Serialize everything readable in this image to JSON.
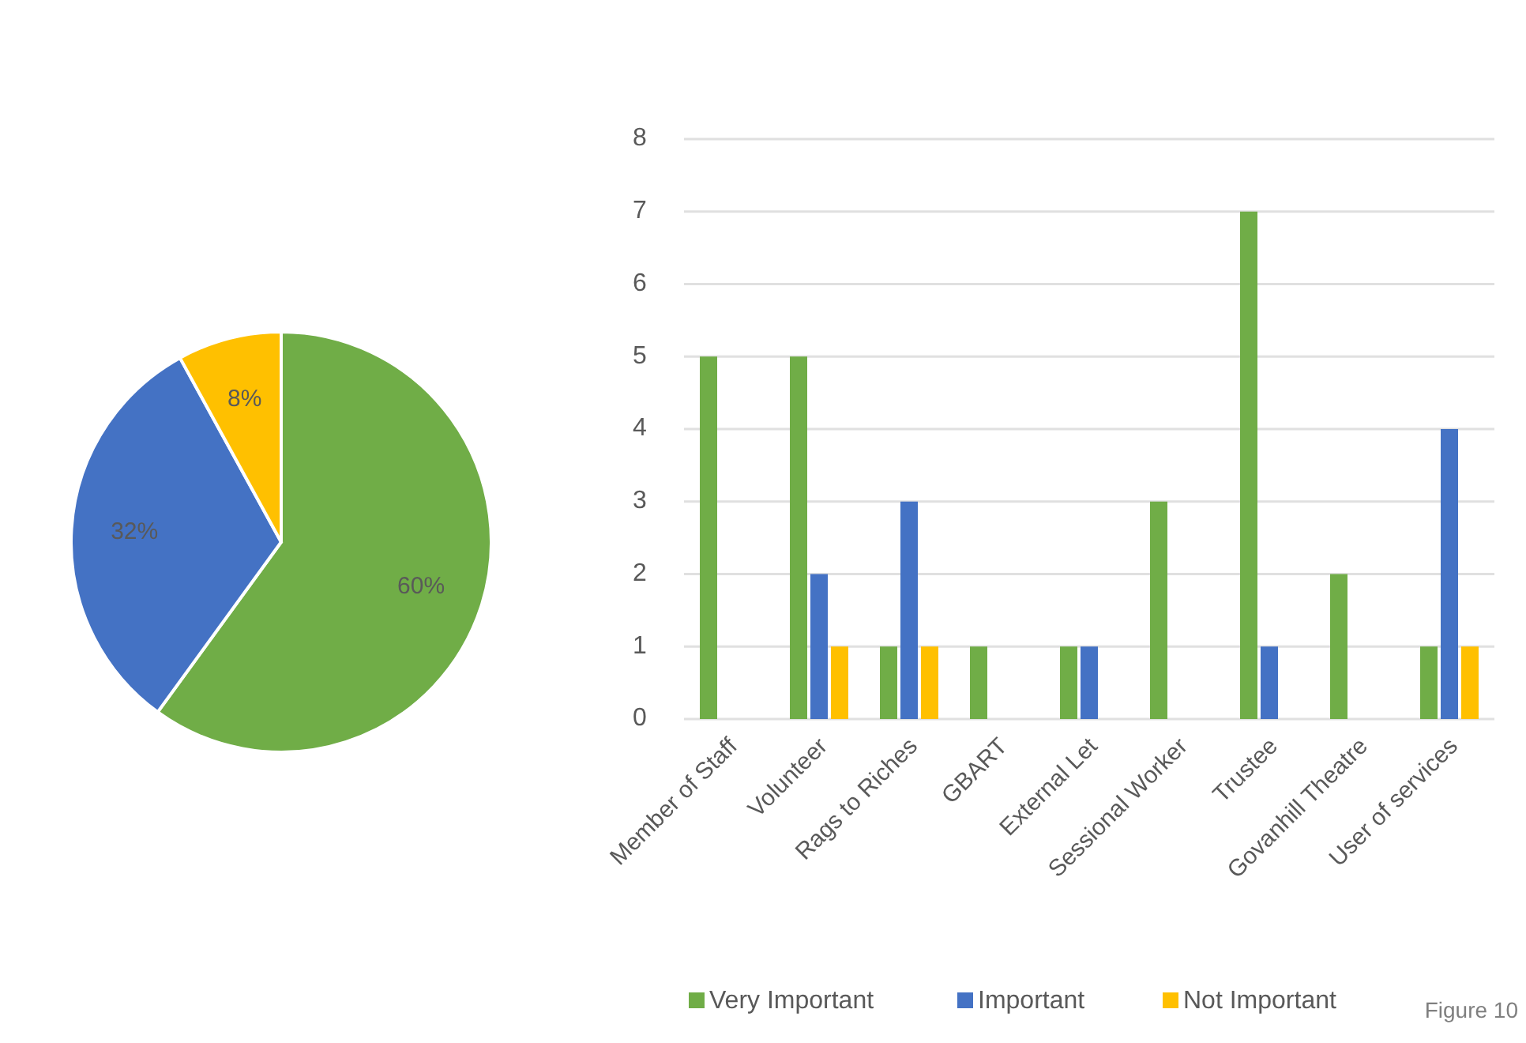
{
  "chart_data": [
    {
      "type": "pie",
      "categories": [
        null,
        null,
        null
      ],
      "values": [
        60,
        32,
        8
      ],
      "colors": [
        "#70ad47",
        "#4472c4",
        "#ffc000"
      ],
      "value_labels": [
        "60%",
        "32%",
        "8%"
      ]
    },
    {
      "type": "bar",
      "categories": [
        "Member of Staff",
        "Volunteer",
        "Rags to Riches",
        "GBART",
        "External Let",
        "Sessional Worker",
        "Trustee",
        "Govanhill Theatre",
        "User of services"
      ],
      "series": [
        {
          "name": "Very Important",
          "color": "#70ad47",
          "values": [
            5,
            5,
            1,
            1,
            1,
            3,
            7,
            2,
            1
          ]
        },
        {
          "name": "Important",
          "color": "#4472c4",
          "values": [
            0,
            2,
            3,
            0,
            1,
            0,
            1,
            0,
            4
          ]
        },
        {
          "name": "Not Important",
          "color": "#ffc000",
          "values": [
            0,
            1,
            1,
            0,
            0,
            0,
            0,
            0,
            1
          ]
        }
      ],
      "ylim": [
        0,
        8
      ],
      "yticks": [
        0,
        1,
        2,
        3,
        4,
        5,
        6,
        7,
        8
      ],
      "grid": "y",
      "legend": "bottom",
      "annotations": [
        "Figure 10"
      ]
    }
  ]
}
